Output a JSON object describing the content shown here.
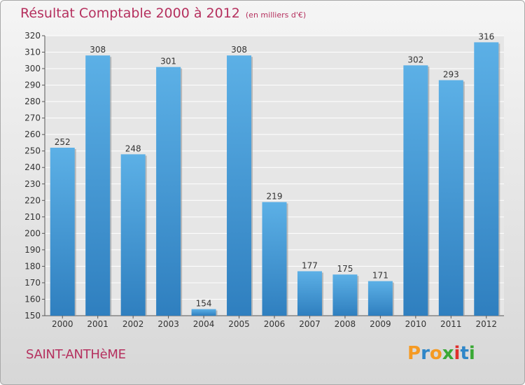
{
  "title": "Résultat Comptable 2000 à 2012",
  "unit": "(en milliers d'€)",
  "commune": "SAINT-ANTHèME",
  "logo": {
    "letters": [
      "P",
      "r",
      "o",
      "x",
      "i",
      "t",
      "i"
    ],
    "colors": [
      "#f59a23",
      "#2e86c8",
      "#f59a23",
      "#3aa935",
      "#e0312c",
      "#2e86c8",
      "#3aa935"
    ]
  },
  "colors": {
    "bar": "#3a97d8",
    "bar_light": "#5cb0e6",
    "bar_dark": "#2f7fbf",
    "title": "#b5305e"
  },
  "chart_data": {
    "type": "bar",
    "title": "Résultat Comptable 2000 à 2012",
    "categories": [
      "2000",
      "2001",
      "2002",
      "2003",
      "2004",
      "2005",
      "2006",
      "2007",
      "2008",
      "2009",
      "2010",
      "2011",
      "2012"
    ],
    "values": [
      252,
      308,
      248,
      301,
      154,
      308,
      219,
      177,
      175,
      171,
      302,
      293,
      316
    ],
    "ylim": [
      150,
      320
    ],
    "yticks": [
      150,
      160,
      170,
      180,
      190,
      200,
      210,
      220,
      230,
      240,
      250,
      260,
      270,
      280,
      290,
      300,
      310,
      320
    ],
    "grid": true,
    "legend": "none"
  }
}
